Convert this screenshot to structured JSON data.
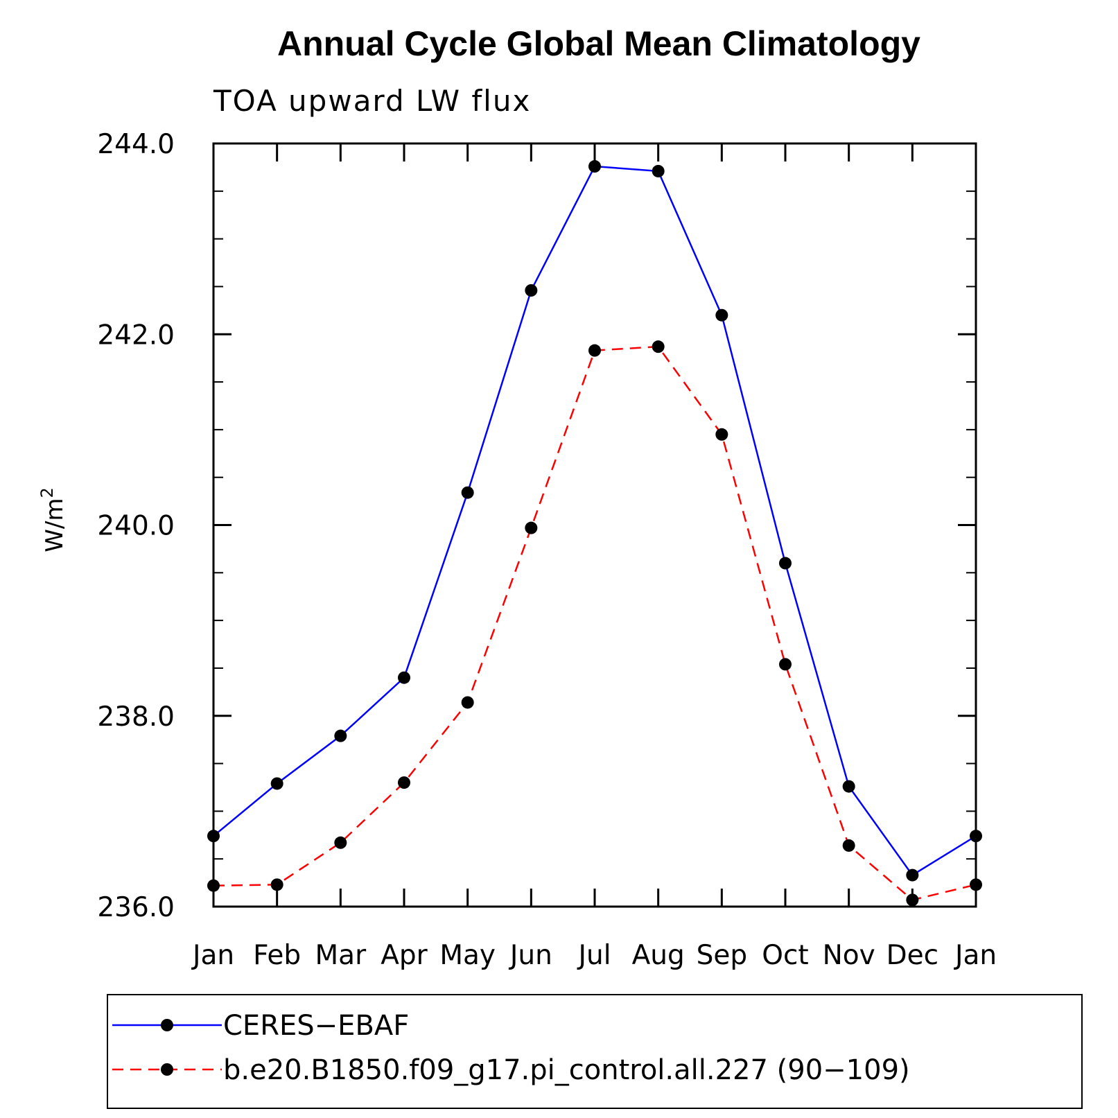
{
  "chart_data": {
    "type": "line",
    "title": "Annual Cycle Global Mean Climatology",
    "subtitle": "TOA upward LW flux",
    "ylabel": "W/m",
    "ylabel_superscript": "2",
    "categories": [
      "Jan",
      "Feb",
      "Mar",
      "Apr",
      "May",
      "Jun",
      "Jul",
      "Aug",
      "Sep",
      "Oct",
      "Nov",
      "Dec",
      "Jan"
    ],
    "ylim": [
      236.0,
      244.0
    ],
    "yticks": [
      "236.0",
      "238.0",
      "240.0",
      "242.0",
      "244.0"
    ],
    "yticks_values": [
      236.0,
      238.0,
      240.0,
      242.0,
      244.0
    ],
    "y_minor_step": 0.5,
    "grid": false,
    "legend_position": "bottom",
    "series": [
      {
        "name": "CERES−EBAF",
        "color": "#0000ff",
        "dash": "solid",
        "marker": "circle",
        "values": [
          236.74,
          237.29,
          237.79,
          238.4,
          240.34,
          242.46,
          243.76,
          243.71,
          242.2,
          239.6,
          237.26,
          236.33,
          236.74
        ]
      },
      {
        "name": "b.e20.B1850.f09_g17.pi_control.all.227 (90−109)",
        "color": "#ff0000",
        "dash": "dashed",
        "marker": "circle",
        "values": [
          236.22,
          236.23,
          236.67,
          237.3,
          238.14,
          239.97,
          241.83,
          241.87,
          240.95,
          238.54,
          236.64,
          236.07,
          236.23
        ]
      }
    ]
  }
}
